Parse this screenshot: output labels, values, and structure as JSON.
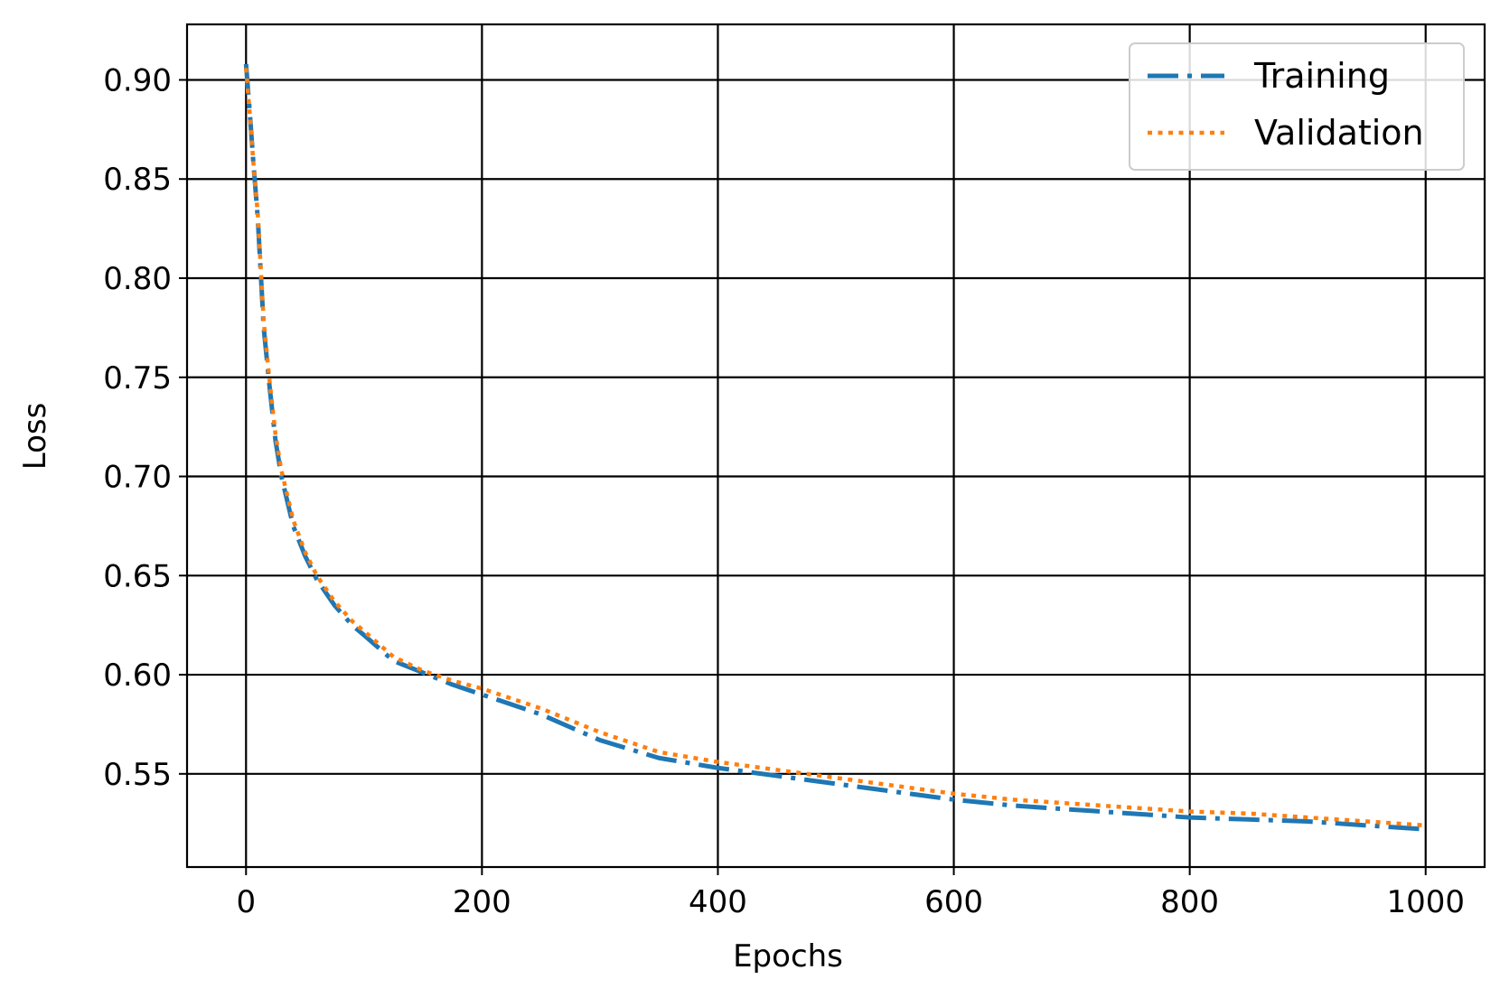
{
  "chart_data": {
    "type": "line",
    "xlabel": "Epochs",
    "ylabel": "Loss",
    "xlim": [
      -50,
      1050
    ],
    "ylim": [
      0.503,
      0.928
    ],
    "xticks": [
      0,
      200,
      400,
      600,
      800,
      1000
    ],
    "xtick_labels": [
      "0",
      "200",
      "400",
      "600",
      "800",
      "1000"
    ],
    "yticks": [
      0.55,
      0.6,
      0.65,
      0.7,
      0.75,
      0.8,
      0.85,
      0.9
    ],
    "ytick_labels": [
      "0.55",
      "0.60",
      "0.65",
      "0.70",
      "0.75",
      "0.80",
      "0.85",
      "0.90"
    ],
    "grid": true,
    "legend_position": "top-right",
    "series": [
      {
        "name": "Training",
        "style": "dashdot",
        "color": "#1f77b4",
        "x": [
          0,
          3,
          6,
          10,
          15,
          20,
          25,
          30,
          40,
          50,
          60,
          75,
          90,
          100,
          125,
          150,
          175,
          200,
          250,
          300,
          350,
          400,
          450,
          500,
          550,
          600,
          650,
          700,
          750,
          800,
          850,
          900,
          950,
          1000
        ],
        "y": [
          0.908,
          0.885,
          0.86,
          0.83,
          0.775,
          0.745,
          0.718,
          0.7,
          0.675,
          0.66,
          0.648,
          0.635,
          0.625,
          0.62,
          0.607,
          0.601,
          0.595,
          0.59,
          0.58,
          0.567,
          0.558,
          0.553,
          0.549,
          0.545,
          0.541,
          0.537,
          0.534,
          0.532,
          0.53,
          0.528,
          0.527,
          0.526,
          0.524,
          0.522
        ]
      },
      {
        "name": "Validation",
        "style": "dotted",
        "color": "#ff7f0e",
        "x": [
          0,
          3,
          6,
          10,
          15,
          20,
          25,
          30,
          40,
          50,
          60,
          75,
          90,
          100,
          125,
          150,
          175,
          200,
          250,
          300,
          350,
          400,
          450,
          500,
          550,
          600,
          650,
          700,
          750,
          800,
          850,
          900,
          950,
          1000
        ],
        "y": [
          0.906,
          0.884,
          0.86,
          0.832,
          0.778,
          0.748,
          0.721,
          0.703,
          0.678,
          0.662,
          0.65,
          0.637,
          0.627,
          0.622,
          0.609,
          0.602,
          0.597,
          0.593,
          0.583,
          0.571,
          0.561,
          0.556,
          0.552,
          0.548,
          0.544,
          0.54,
          0.537,
          0.535,
          0.533,
          0.531,
          0.53,
          0.528,
          0.526,
          0.524
        ]
      }
    ]
  }
}
